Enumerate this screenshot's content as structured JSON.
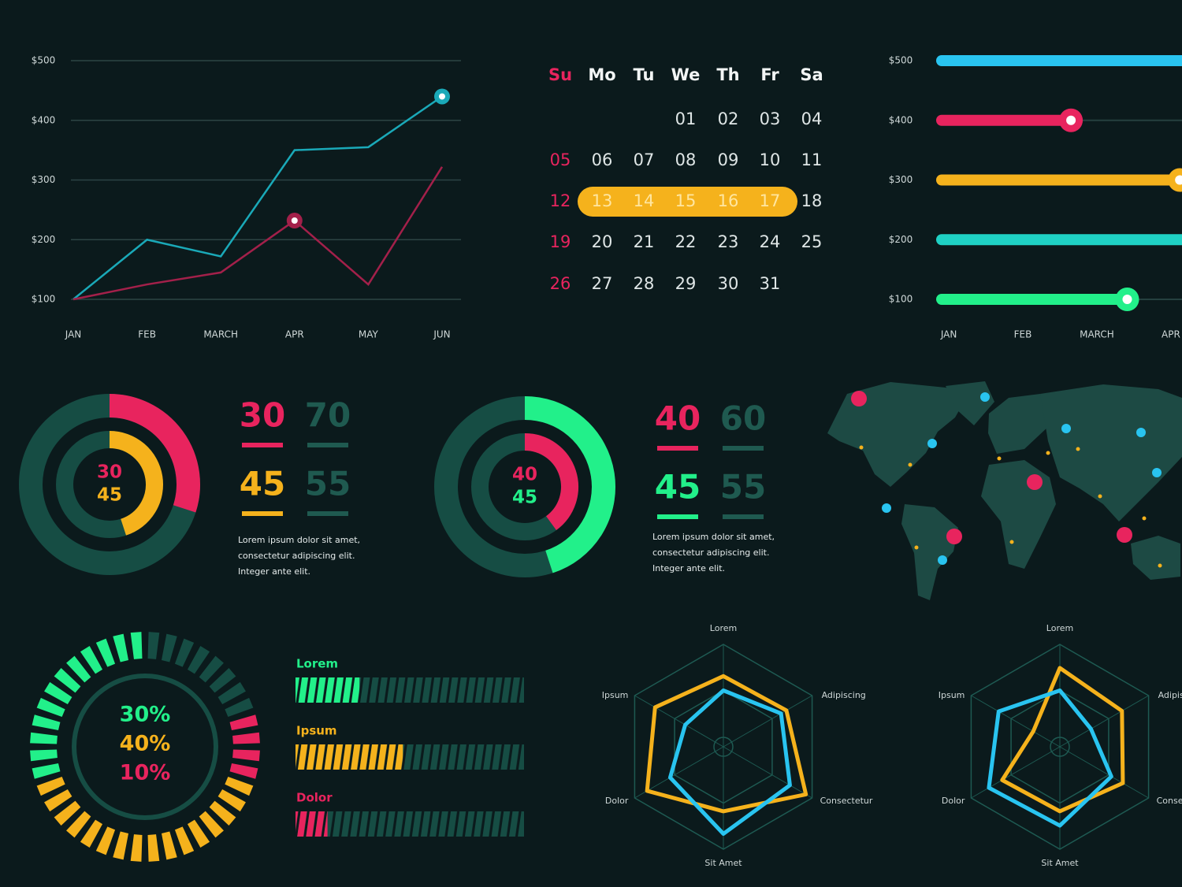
{
  "chart_data": [
    {
      "type": "line",
      "categories": [
        "JAN",
        "FEB",
        "MARCH",
        "APR",
        "MAY",
        "JUN"
      ],
      "series": [
        {
          "color": "#1aa9b8",
          "values": [
            100,
            200,
            172,
            350,
            355,
            440
          ],
          "highlight": 5
        },
        {
          "color": "#a3204a",
          "values": [
            100,
            125,
            145,
            232,
            125,
            322
          ],
          "highlight": 3
        }
      ],
      "ylim": [
        100,
        500
      ],
      "yticks": [
        {
          "value": 100,
          "label": "$100"
        },
        {
          "value": 200,
          "label": "$200"
        },
        {
          "value": 300,
          "label": "$300"
        },
        {
          "value": 400,
          "label": "$400"
        },
        {
          "value": 500,
          "label": "$500"
        }
      ],
      "grid": true
    },
    {
      "type": "hbar",
      "categories": [
        "$500",
        "$400",
        "$300",
        "$200",
        "$100"
      ],
      "values": [
        3.4,
        1.65,
        3.12,
        3.4,
        2.41
      ],
      "colors": [
        "#29c4f0",
        "#e8245e",
        "#f5b21c",
        "#1fd1c4",
        "#22f08a"
      ],
      "handles": [
        false,
        true,
        true,
        false,
        true
      ],
      "xlim": [
        -0.15,
        3.15
      ],
      "xticks": [
        {
          "value": 0,
          "label": "JAN"
        },
        {
          "value": 1,
          "label": "FEB"
        },
        {
          "value": 2,
          "label": "MARCH"
        },
        {
          "value": 3,
          "label": "APR"
        }
      ]
    },
    {
      "type": "donut",
      "rings": [
        {
          "value": 30,
          "rest": 70,
          "color": "#e8245e",
          "ring": "outer"
        },
        {
          "value": 45,
          "rest": 55,
          "color": "#f5b21c",
          "ring": "inner"
        }
      ],
      "text": [
        "Lorem ipsum dolor sit amet,",
        "consectetur adipiscing elit.",
        "Integer ante elit."
      ]
    },
    {
      "type": "donut",
      "rings": [
        {
          "value": 40,
          "rest": 60,
          "color": "#e8245e",
          "ring": "inner"
        },
        {
          "value": 45,
          "rest": 55,
          "color": "#22f08a",
          "ring": "outer"
        }
      ],
      "text": [
        "Lorem ipsum dolor sit amet,",
        "consectetur adipiscing elit.",
        "Integer ante elit."
      ]
    },
    {
      "type": "gauge",
      "values": [
        30,
        40,
        10
      ],
      "value_labels": [
        "30%",
        "40%",
        "10%"
      ],
      "colors": [
        "#22f08a",
        "#f5b21c",
        "#e8245e"
      ]
    },
    {
      "type": "progress",
      "categories": [
        "Lorem",
        "Ipsum",
        "Dolor"
      ],
      "values": [
        28,
        47,
        14
      ],
      "colors": [
        "#22f08a",
        "#f5b21c",
        "#e8245e"
      ],
      "xlim": [
        0,
        100
      ]
    },
    {
      "type": "radar",
      "categories": [
        "Lorem",
        "Adipiscing",
        "Consectetur",
        "Sit Amet",
        "Dolor",
        "Ipsum"
      ],
      "rlim": [
        0,
        100
      ],
      "series": [
        {
          "color": "#f5b21c",
          "values": [
            69,
            71,
            93,
            63,
            86,
            77
          ]
        },
        {
          "color": "#29c4f0",
          "values": [
            55,
            65,
            75,
            85,
            60,
            43
          ]
        }
      ]
    },
    {
      "type": "radar",
      "categories": [
        "Lorem",
        "Adipiscing",
        "Consectetur",
        "Sit Amet",
        "Dolor",
        "Ipsum"
      ],
      "rlim": [
        0,
        100
      ],
      "series": [
        {
          "color": "#f5b21c",
          "values": [
            77,
            70,
            71,
            63,
            65,
            30
          ]
        },
        {
          "color": "#29c4f0",
          "values": [
            55,
            35,
            58,
            77,
            80,
            69
          ]
        }
      ]
    }
  ],
  "calendar": {
    "weekdays": [
      "Su",
      "Mo",
      "Tu",
      "We",
      "Th",
      "Fr",
      "Sa"
    ],
    "weeks": [
      [
        null,
        null,
        null,
        "01",
        "02",
        "03",
        "04"
      ],
      [
        "05",
        "06",
        "07",
        "08",
        "09",
        "10",
        "11"
      ],
      [
        "12",
        "13",
        "14",
        "15",
        "16",
        "17",
        "18"
      ],
      [
        "19",
        "20",
        "21",
        "22",
        "23",
        "24",
        "25"
      ],
      [
        "26",
        "27",
        "28",
        "29",
        "30",
        "31",
        null
      ]
    ],
    "highlight": {
      "week": 2,
      "from": 1,
      "to": 5
    }
  }
}
